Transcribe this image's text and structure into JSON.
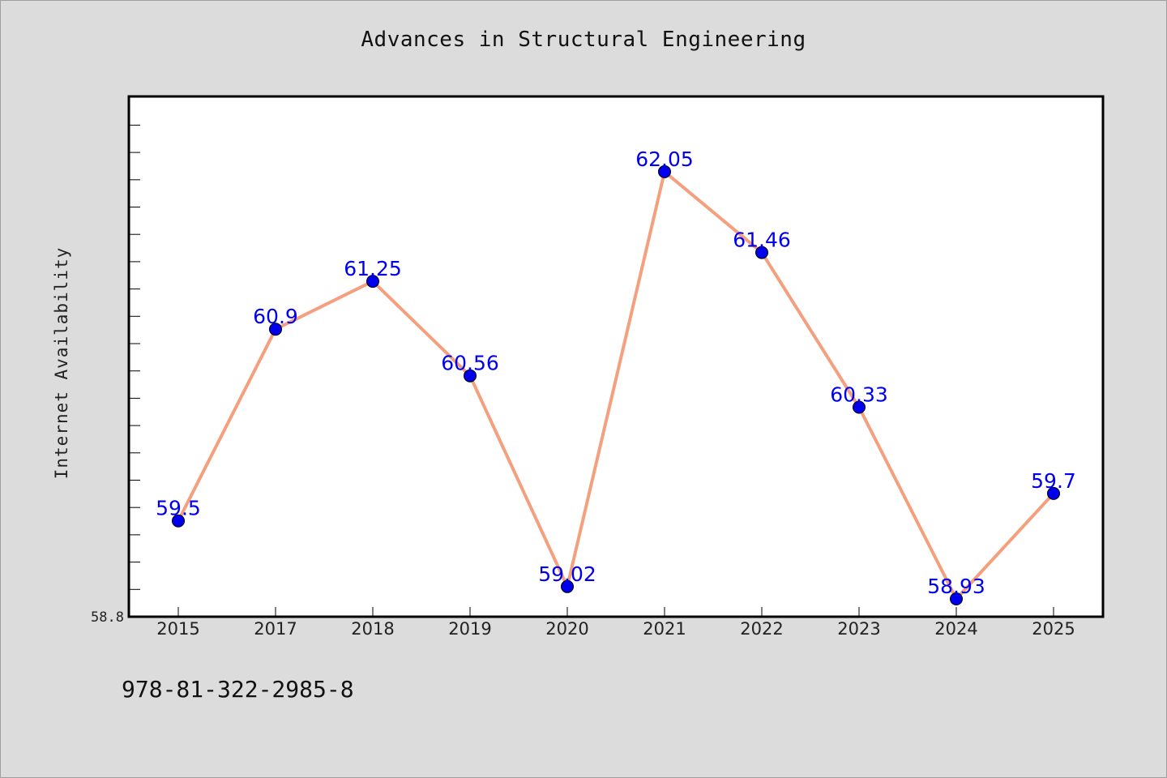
{
  "chart_data": {
    "type": "line",
    "title": "Advances in Structural Engineering",
    "xlabel": "",
    "ylabel": "Internet Availability",
    "categories": [
      "2015",
      "2017",
      "2018",
      "2019",
      "2020",
      "2021",
      "2022",
      "2023",
      "2024",
      "2025"
    ],
    "series": [
      {
        "values": [
          59.5,
          60.9,
          61.25,
          60.56,
          59.02,
          62.05,
          61.46,
          60.33,
          58.93,
          59.7
        ],
        "data_labels": [
          "59.5",
          "60.9",
          "61.25",
          "60.56",
          "59.02",
          "62.05",
          "61.46",
          "60.33",
          "58.93",
          "59.7"
        ]
      }
    ],
    "ylim": [
      58.8,
      62.6
    ],
    "y_tick_labels": [
      "58.8"
    ],
    "grid": false,
    "legend": "none",
    "colors": {
      "line": "#f4a07e",
      "marker": "#0000ee",
      "label": "#0000ee",
      "plot_bg": "#ffffff",
      "page_bg": "#dcdcdc"
    }
  },
  "footer": {
    "isbn": "978-81-322-2985-8"
  }
}
